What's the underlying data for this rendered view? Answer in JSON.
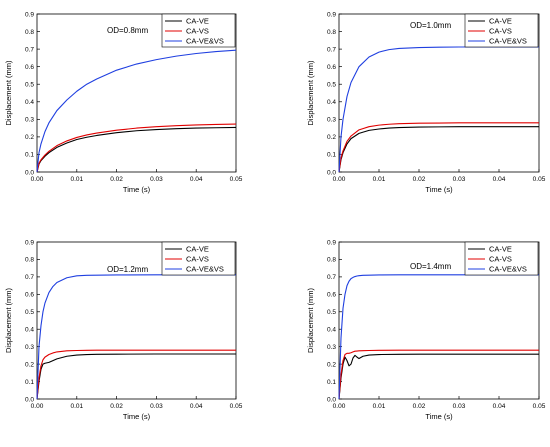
{
  "chart_data": [
    {
      "type": "line",
      "panel_label": "OD=0.8mm",
      "xlabel": "Time (s)",
      "ylabel": "Displacement (mm)",
      "xlim": [
        0,
        0.05
      ],
      "ylim": [
        0,
        0.9
      ],
      "xticks": [
        "0.00",
        "0.01",
        "0.02",
        "0.03",
        "0.04",
        "0.05"
      ],
      "yticks": [
        "0.0",
        "0.1",
        "0.2",
        "0.3",
        "0.4",
        "0.5",
        "0.6",
        "0.7",
        "0.8",
        "0.9"
      ],
      "legend_position": "top-right",
      "x": [
        0,
        0.0005,
        0.001,
        0.002,
        0.003,
        0.005,
        0.0075,
        0.01,
        0.0125,
        0.015,
        0.02,
        0.025,
        0.03,
        0.035,
        0.04,
        0.045,
        0.05
      ],
      "series": [
        {
          "name": "CA-VE",
          "color": "#000000",
          "values": [
            0,
            0.045,
            0.065,
            0.09,
            0.11,
            0.14,
            0.165,
            0.185,
            0.198,
            0.208,
            0.224,
            0.235,
            0.242,
            0.247,
            0.25,
            0.252,
            0.254
          ]
        },
        {
          "name": "CA-VS",
          "color": "#e00000",
          "values": [
            0,
            0.05,
            0.07,
            0.097,
            0.118,
            0.15,
            0.177,
            0.197,
            0.211,
            0.222,
            0.238,
            0.25,
            0.258,
            0.264,
            0.268,
            0.271,
            0.273
          ]
        },
        {
          "name": "CA-VE&VS",
          "color": "#1f3fe0",
          "values": [
            0,
            0.11,
            0.16,
            0.23,
            0.28,
            0.35,
            0.41,
            0.46,
            0.5,
            0.53,
            0.58,
            0.615,
            0.64,
            0.66,
            0.675,
            0.686,
            0.694
          ]
        }
      ]
    },
    {
      "type": "line",
      "panel_label": "OD=1.0mm",
      "xlabel": "Time (s)",
      "ylabel": "Displacement (mm)",
      "xlim": [
        0,
        0.05
      ],
      "ylim": [
        0,
        0.9
      ],
      "xticks": [
        "0.00",
        "0.01",
        "0.02",
        "0.03",
        "0.04",
        "0.05"
      ],
      "yticks": [
        "0.0",
        "0.1",
        "0.2",
        "0.3",
        "0.4",
        "0.5",
        "0.6",
        "0.7",
        "0.8",
        "0.9"
      ],
      "legend_position": "top-right",
      "x": [
        0,
        0.0005,
        0.001,
        0.002,
        0.003,
        0.005,
        0.0075,
        0.01,
        0.0125,
        0.015,
        0.02,
        0.025,
        0.03,
        0.035,
        0.04,
        0.045,
        0.05
      ],
      "series": [
        {
          "name": "CA-VE",
          "color": "#000000",
          "values": [
            0,
            0.07,
            0.11,
            0.16,
            0.19,
            0.22,
            0.237,
            0.245,
            0.25,
            0.253,
            0.256,
            0.257,
            0.258,
            0.258,
            0.258,
            0.258,
            0.258
          ]
        },
        {
          "name": "CA-VS",
          "color": "#e00000",
          "values": [
            0,
            0.08,
            0.12,
            0.175,
            0.205,
            0.24,
            0.258,
            0.267,
            0.272,
            0.275,
            0.278,
            0.279,
            0.28,
            0.28,
            0.28,
            0.28,
            0.28
          ]
        },
        {
          "name": "CA-VE&VS",
          "color": "#1f3fe0",
          "values": [
            0,
            0.2,
            0.3,
            0.43,
            0.51,
            0.6,
            0.655,
            0.683,
            0.697,
            0.704,
            0.709,
            0.711,
            0.712,
            0.712,
            0.712,
            0.712,
            0.712
          ]
        }
      ]
    },
    {
      "type": "line",
      "panel_label": "OD=1.2mm",
      "xlabel": "Time (s)",
      "ylabel": "Displacement (mm)",
      "xlim": [
        0,
        0.05
      ],
      "ylim": [
        0,
        0.9
      ],
      "xticks": [
        "0.00",
        "0.01",
        "0.02",
        "0.03",
        "0.04",
        "0.05"
      ],
      "yticks": [
        "0.0",
        "0.1",
        "0.2",
        "0.3",
        "0.4",
        "0.5",
        "0.6",
        "0.7",
        "0.8",
        "0.9"
      ],
      "legend_position": "top-right",
      "x": [
        0,
        0.0005,
        0.001,
        0.0015,
        0.002,
        0.003,
        0.004,
        0.005,
        0.0075,
        0.01,
        0.0125,
        0.015,
        0.02,
        0.03,
        0.04,
        0.05
      ],
      "series": [
        {
          "name": "CA-VE",
          "color": "#000000",
          "values": [
            0,
            0.1,
            0.17,
            0.2,
            0.205,
            0.21,
            0.22,
            0.23,
            0.245,
            0.252,
            0.255,
            0.256,
            0.257,
            0.258,
            0.258,
            0.258
          ]
        },
        {
          "name": "CA-VS",
          "color": "#e00000",
          "values": [
            0,
            0.12,
            0.19,
            0.225,
            0.24,
            0.255,
            0.264,
            0.27,
            0.276,
            0.278,
            0.279,
            0.28,
            0.28,
            0.28,
            0.28,
            0.28
          ]
        },
        {
          "name": "CA-VE&VS",
          "color": "#1f3fe0",
          "values": [
            0,
            0.3,
            0.42,
            0.5,
            0.55,
            0.61,
            0.645,
            0.668,
            0.695,
            0.706,
            0.709,
            0.71,
            0.711,
            0.712,
            0.712,
            0.712
          ]
        }
      ]
    },
    {
      "type": "line",
      "panel_label": "OD=1.4mm",
      "xlabel": "Time (s)",
      "ylabel": "Displacement (mm)",
      "xlim": [
        0,
        0.05
      ],
      "ylim": [
        0,
        0.9
      ],
      "xticks": [
        "0.00",
        "0.01",
        "0.02",
        "0.03",
        "0.04",
        "0.05"
      ],
      "yticks": [
        "0.0",
        "0.1",
        "0.2",
        "0.3",
        "0.4",
        "0.5",
        "0.6",
        "0.7",
        "0.8",
        "0.9"
      ],
      "legend_position": "top-right",
      "x": [
        0,
        0.0005,
        0.001,
        0.0015,
        0.002,
        0.0025,
        0.003,
        0.0035,
        0.004,
        0.0045,
        0.005,
        0.006,
        0.0075,
        0.01,
        0.015,
        0.02,
        0.03,
        0.04,
        0.05
      ],
      "series": [
        {
          "name": "CA-VE",
          "color": "#000000",
          "values": [
            0,
            0.12,
            0.2,
            0.24,
            0.22,
            0.19,
            0.2,
            0.235,
            0.25,
            0.24,
            0.232,
            0.245,
            0.252,
            0.255,
            0.256,
            0.257,
            0.257,
            0.257,
            0.257
          ]
        },
        {
          "name": "CA-VS",
          "color": "#e00000",
          "values": [
            0,
            0.14,
            0.22,
            0.255,
            0.262,
            0.262,
            0.265,
            0.27,
            0.274,
            0.275,
            0.276,
            0.277,
            0.278,
            0.279,
            0.28,
            0.28,
            0.28,
            0.28,
            0.28
          ]
        },
        {
          "name": "CA-VE&VS",
          "color": "#1f3fe0",
          "values": [
            0,
            0.35,
            0.52,
            0.6,
            0.65,
            0.675,
            0.69,
            0.697,
            0.702,
            0.705,
            0.707,
            0.709,
            0.71,
            0.711,
            0.712,
            0.712,
            0.712,
            0.712,
            0.712
          ]
        }
      ]
    }
  ]
}
